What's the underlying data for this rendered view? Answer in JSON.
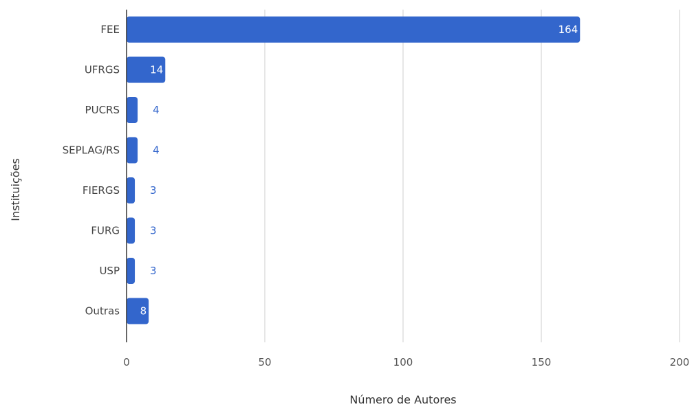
{
  "chart_data": {
    "type": "bar",
    "orientation": "horizontal",
    "title": "",
    "xlabel": "Número de Autores",
    "ylabel": "Instituições",
    "categories": [
      "FEE",
      "UFRGS",
      "PUCRS",
      "SEPLAG/RS",
      "FIERGS",
      "FURG",
      "USP",
      "Outras"
    ],
    "values": [
      164,
      14,
      4,
      4,
      3,
      3,
      3,
      8
    ],
    "data_labels": [
      "164",
      "14",
      "4",
      "4",
      "3",
      "3",
      "3",
      "8"
    ],
    "xlim": [
      0,
      200
    ],
    "xticks": [
      "0",
      "50",
      "100",
      "150",
      "200"
    ],
    "grid": "vertical",
    "legend": "none",
    "colors": {
      "bar": "#3366cc",
      "label_inside": "#ffffff",
      "label_outside": "#3366cc",
      "grid": "#cccccc",
      "axis": "#333333"
    }
  }
}
